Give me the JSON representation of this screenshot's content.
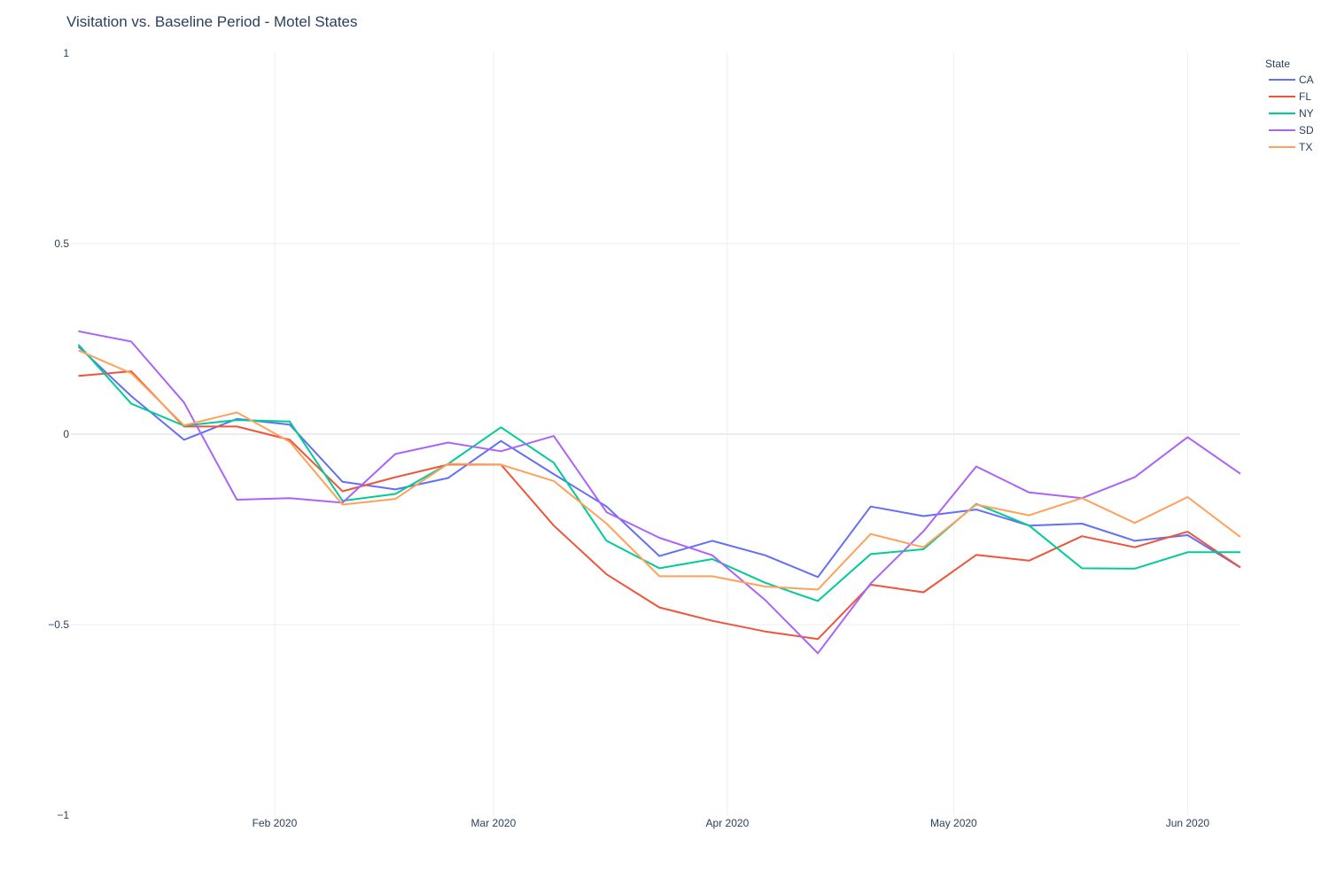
{
  "chart_data": {
    "type": "line",
    "title": "Visitation vs. Baseline Period - Motel States",
    "xlabel": "",
    "ylabel": "",
    "ylim": [
      -1,
      1
    ],
    "xlim": [
      "2020-01-05",
      "2020-06-08"
    ],
    "y_ticks": [
      {
        "value": 1,
        "label": "1"
      },
      {
        "value": 0.5,
        "label": "0.5"
      },
      {
        "value": 0,
        "label": "0"
      },
      {
        "value": -0.5,
        "label": "−0.5"
      },
      {
        "value": -1,
        "label": "−1"
      }
    ],
    "x_ticks": [
      {
        "value": "2020-02-01",
        "label": "Feb 2020"
      },
      {
        "value": "2020-03-01",
        "label": "Mar 2020"
      },
      {
        "value": "2020-04-01",
        "label": "Apr 2020"
      },
      {
        "value": "2020-05-01",
        "label": "May 2020"
      },
      {
        "value": "2020-06-01",
        "label": "Jun 2020"
      }
    ],
    "grid": true,
    "legend": {
      "title": "State",
      "position": "top-right"
    },
    "x": [
      "2020-01-06",
      "2020-01-13",
      "2020-01-20",
      "2020-01-27",
      "2020-02-03",
      "2020-02-10",
      "2020-02-17",
      "2020-02-24",
      "2020-03-02",
      "2020-03-09",
      "2020-03-16",
      "2020-03-23",
      "2020-03-30",
      "2020-04-06",
      "2020-04-13",
      "2020-04-20",
      "2020-04-27",
      "2020-05-04",
      "2020-05-11",
      "2020-05-18",
      "2020-05-25",
      "2020-06-01",
      "2020-06-08"
    ],
    "series": [
      {
        "name": "CA",
        "color": "#636efa",
        "values": [
          0.23,
          0.1,
          -0.015,
          0.04,
          0.025,
          -0.125,
          -0.145,
          -0.115,
          -0.018,
          -0.105,
          -0.19,
          -0.32,
          -0.28,
          -0.318,
          -0.375,
          -0.19,
          -0.215,
          -0.198,
          -0.24,
          -0.235,
          -0.28,
          -0.265,
          -0.35
        ]
      },
      {
        "name": "FL",
        "color": "#ef553b",
        "values": [
          0.153,
          0.165,
          0.02,
          0.02,
          -0.015,
          -0.15,
          -0.113,
          -0.08,
          -0.08,
          -0.24,
          -0.368,
          -0.455,
          -0.49,
          -0.518,
          -0.538,
          -0.395,
          -0.415,
          -0.317,
          -0.332,
          -0.268,
          -0.297,
          -0.256,
          -0.35
        ]
      },
      {
        "name": "NY",
        "color": "#00cc96",
        "values": [
          0.235,
          0.08,
          0.022,
          0.037,
          0.033,
          -0.175,
          -0.157,
          -0.078,
          0.018,
          -0.075,
          -0.28,
          -0.352,
          -0.328,
          -0.39,
          -0.438,
          -0.315,
          -0.302,
          -0.183,
          -0.24,
          -0.352,
          -0.353,
          -0.31,
          -0.31
        ]
      },
      {
        "name": "SD",
        "color": "#ab63fa",
        "values": [
          0.27,
          0.243,
          0.083,
          -0.172,
          -0.168,
          -0.18,
          -0.052,
          -0.022,
          -0.045,
          -0.005,
          -0.205,
          -0.272,
          -0.318,
          -0.435,
          -0.575,
          -0.392,
          -0.255,
          -0.085,
          -0.153,
          -0.168,
          -0.113,
          -0.008,
          -0.104
        ]
      },
      {
        "name": "TX",
        "color": "#ffa15a",
        "values": [
          0.22,
          0.16,
          0.023,
          0.057,
          -0.02,
          -0.185,
          -0.17,
          -0.078,
          -0.08,
          -0.123,
          -0.235,
          -0.373,
          -0.373,
          -0.4,
          -0.408,
          -0.262,
          -0.297,
          -0.185,
          -0.213,
          -0.168,
          -0.233,
          -0.165,
          -0.27
        ]
      }
    ]
  }
}
